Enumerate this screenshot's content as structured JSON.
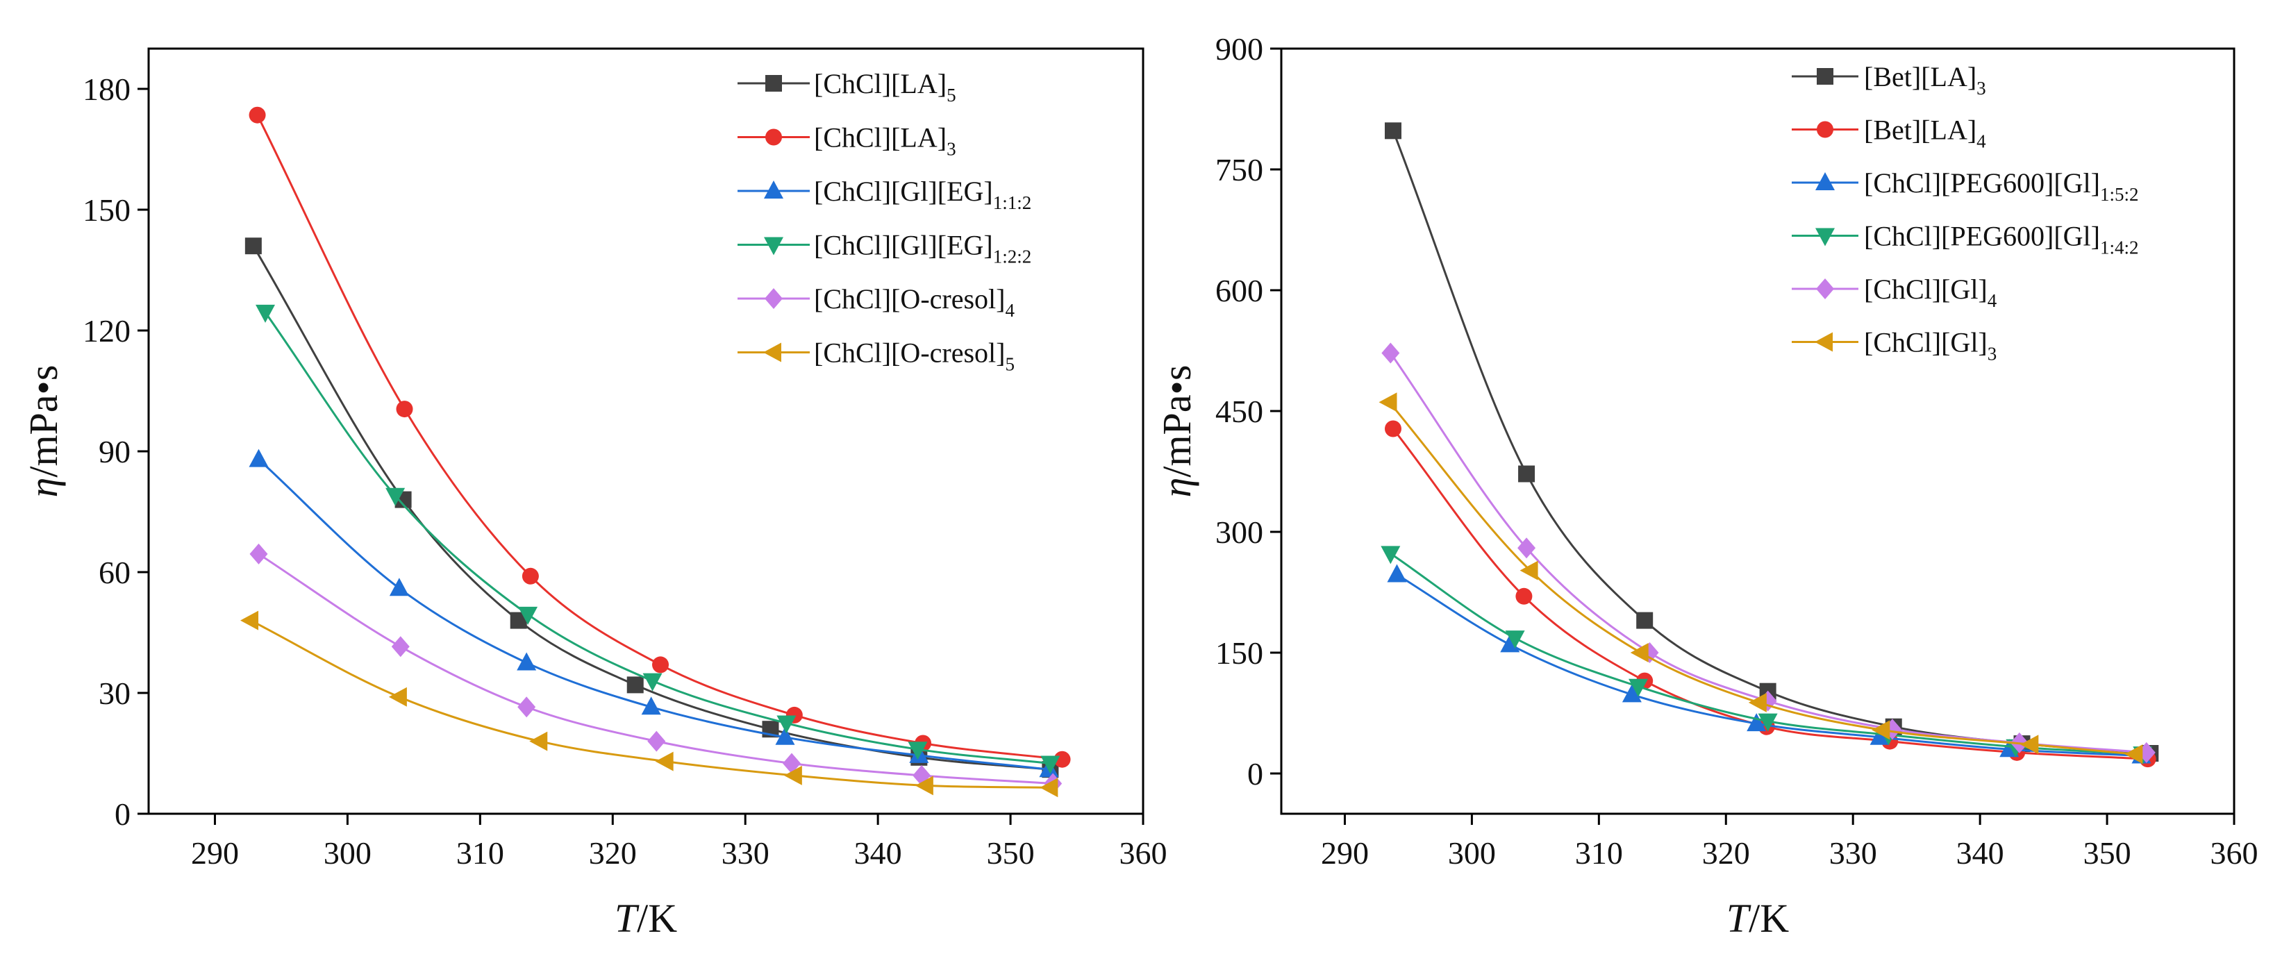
{
  "chart_data": [
    {
      "id": "left",
      "type": "line",
      "x_axis": {
        "label_var": "T",
        "label_unit": "/K",
        "range": [
          285,
          360
        ],
        "ticks": [
          290,
          300,
          310,
          320,
          330,
          340,
          350,
          360
        ]
      },
      "y_axis": {
        "label_var": "η",
        "label_unit": "/mPa•s",
        "range": [
          0,
          190
        ],
        "ticks": [
          0,
          30,
          60,
          90,
          120,
          150,
          180
        ]
      },
      "legend_position": "top-right",
      "series": [
        {
          "name": "[ChCl][LA]",
          "sub": "5",
          "marker": "square",
          "color": "#404040",
          "x": [
            292.9,
            304.2,
            312.9,
            321.7,
            331.9,
            343.1,
            353.0
          ],
          "y": [
            141,
            78,
            48,
            32,
            21,
            14,
            11
          ]
        },
        {
          "name": "[ChCl][LA]",
          "sub": "3",
          "marker": "circle",
          "color": "#e8312c",
          "x": [
            293.2,
            304.3,
            313.8,
            323.6,
            333.7,
            343.4,
            353.9
          ],
          "y": [
            173.5,
            100.5,
            59,
            37,
            24.5,
            17.5,
            13.5
          ]
        },
        {
          "name": "[ChCl][Gl][EG]",
          "sub": "1:1:2",
          "marker": "triangle-up",
          "color": "#1f6fd6",
          "x": [
            293.3,
            303.9,
            313.5,
            322.9,
            333.0,
            343.1,
            352.9
          ],
          "y": [
            88,
            56,
            37.5,
            26.5,
            19,
            14.5,
            11
          ]
        },
        {
          "name": "[ChCl][Gl][EG]",
          "sub": "1:2:2",
          "marker": "triangle-down",
          "color": "#1fa574",
          "x": [
            293.8,
            303.6,
            313.6,
            323.0,
            333.1,
            343.0,
            353.0
          ],
          "y": [
            124.5,
            79,
            49.5,
            33,
            22.5,
            16,
            12.5
          ]
        },
        {
          "name": "[ChCl][O-cresol]",
          "sub": "4",
          "marker": "diamond",
          "color": "#c77ce8",
          "x": [
            293.3,
            304.0,
            313.5,
            323.3,
            333.5,
            343.3,
            353.2
          ],
          "y": [
            64.5,
            41.5,
            26.5,
            18,
            12.5,
            9.5,
            7.5
          ]
        },
        {
          "name": "[ChCl][O-cresol]",
          "sub": "5",
          "marker": "triangle-left",
          "color": "#d89a10",
          "x": [
            292.7,
            303.9,
            314.5,
            324.0,
            333.7,
            343.6,
            353.0
          ],
          "y": [
            48,
            29,
            18,
            13,
            9.5,
            7,
            6.5
          ]
        }
      ]
    },
    {
      "id": "right",
      "type": "line",
      "x_axis": {
        "label_var": "T",
        "label_unit": "/K",
        "range": [
          285,
          360
        ],
        "ticks": [
          290,
          300,
          310,
          320,
          330,
          340,
          350,
          360
        ]
      },
      "y_axis": {
        "label_var": "η",
        "label_unit": "/mPa•s",
        "range": [
          -50,
          900
        ],
        "ticks": [
          0,
          150,
          300,
          450,
          600,
          750,
          900
        ]
      },
      "legend_position": "top-right",
      "series": [
        {
          "name": "[Bet][LA]",
          "sub": "3",
          "marker": "square",
          "color": "#404040",
          "x": [
            293.8,
            304.3,
            313.6,
            323.3,
            333.2,
            343.3,
            353.4
          ],
          "y": [
            798,
            372,
            190,
            102,
            58,
            37,
            25
          ]
        },
        {
          "name": "[Bet][LA]",
          "sub": "4",
          "marker": "circle",
          "color": "#e8312c",
          "x": [
            293.8,
            304.1,
            313.6,
            323.2,
            332.9,
            342.9,
            353.2
          ],
          "y": [
            428,
            220,
            115,
            58,
            40,
            26,
            18
          ]
        },
        {
          "name": "[ChCl][PEG600][Gl]",
          "sub": "1:5:2",
          "marker": "triangle-up",
          "color": "#1f6fd6",
          "x": [
            294.1,
            303.0,
            312.6,
            322.4,
            332.1,
            342.3,
            352.7
          ],
          "y": [
            247,
            160,
            98,
            62,
            45,
            30,
            22
          ]
        },
        {
          "name": "[ChCl][PEG600][Gl]",
          "sub": "1:4:2",
          "marker": "triangle-down",
          "color": "#1fa574",
          "x": [
            293.6,
            303.4,
            313.1,
            323.3,
            332.8,
            342.8,
            352.8
          ],
          "y": [
            273,
            168,
            108,
            65,
            48,
            33,
            24
          ]
        },
        {
          "name": "[ChCl][Gl]",
          "sub": "4",
          "marker": "diamond",
          "color": "#c77ce8",
          "x": [
            293.6,
            304.3,
            314.0,
            323.3,
            333.1,
            343.1,
            353.1
          ],
          "y": [
            522,
            280,
            150,
            90,
            55,
            38,
            26
          ]
        },
        {
          "name": "[ChCl][Gl]",
          "sub": "3",
          "marker": "triangle-left",
          "color": "#d89a10",
          "x": [
            293.5,
            304.6,
            313.3,
            322.6,
            332.3,
            344.0,
            352.2
          ],
          "y": [
            461,
            252,
            150,
            88,
            54,
            36,
            24
          ]
        }
      ]
    }
  ]
}
